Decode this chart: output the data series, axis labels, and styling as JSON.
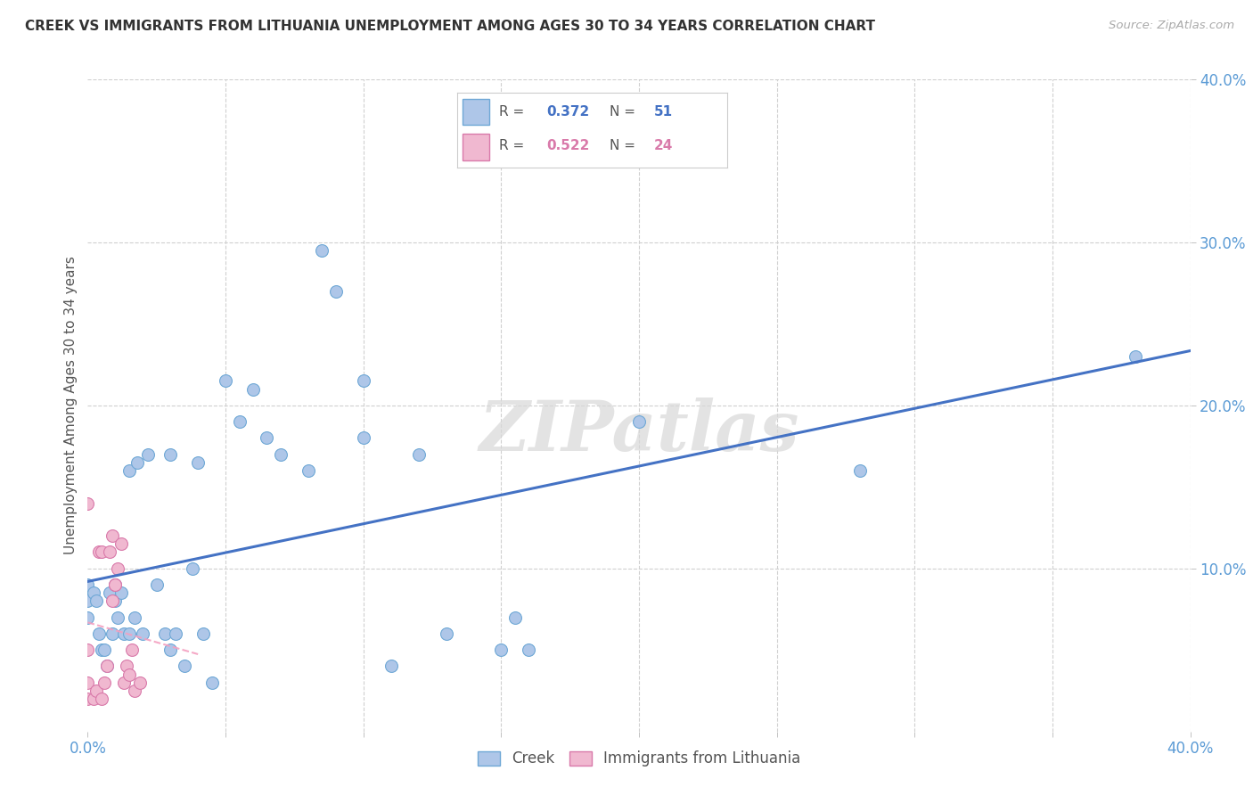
{
  "title": "CREEK VS IMMIGRANTS FROM LITHUANIA UNEMPLOYMENT AMONG AGES 30 TO 34 YEARS CORRELATION CHART",
  "source": "Source: ZipAtlas.com",
  "ylabel": "Unemployment Among Ages 30 to 34 years",
  "xlim": [
    0.0,
    0.4
  ],
  "ylim": [
    0.0,
    0.4
  ],
  "creek_color": "#aec6e8",
  "creek_edge_color": "#6fa8d6",
  "lithuania_color": "#f0b8d0",
  "lithuania_edge_color": "#d97aaa",
  "creek_R": "0.372",
  "creek_N": "51",
  "lithuania_R": "0.522",
  "lithuania_N": "24",
  "creek_line_color": "#4472c4",
  "lithuania_line_color": "#f4a0c0",
  "creek_x": [
    0.0,
    0.0,
    0.0,
    0.002,
    0.003,
    0.004,
    0.005,
    0.006,
    0.007,
    0.008,
    0.009,
    0.01,
    0.01,
    0.011,
    0.012,
    0.013,
    0.015,
    0.015,
    0.017,
    0.018,
    0.02,
    0.022,
    0.025,
    0.028,
    0.03,
    0.03,
    0.032,
    0.035,
    0.038,
    0.04,
    0.042,
    0.045,
    0.05,
    0.055,
    0.06,
    0.065,
    0.07,
    0.08,
    0.085,
    0.09,
    0.1,
    0.1,
    0.11,
    0.12,
    0.13,
    0.15,
    0.155,
    0.16,
    0.2,
    0.28,
    0.38
  ],
  "creek_y": [
    0.09,
    0.08,
    0.07,
    0.085,
    0.08,
    0.06,
    0.05,
    0.05,
    0.04,
    0.085,
    0.06,
    0.09,
    0.08,
    0.07,
    0.085,
    0.06,
    0.16,
    0.06,
    0.07,
    0.165,
    0.06,
    0.17,
    0.09,
    0.06,
    0.17,
    0.05,
    0.06,
    0.04,
    0.1,
    0.165,
    0.06,
    0.03,
    0.215,
    0.19,
    0.21,
    0.18,
    0.17,
    0.16,
    0.295,
    0.27,
    0.215,
    0.18,
    0.04,
    0.17,
    0.06,
    0.05,
    0.07,
    0.05,
    0.19,
    0.16,
    0.23
  ],
  "lithuania_x": [
    0.0,
    0.0,
    0.0,
    0.0,
    0.002,
    0.003,
    0.004,
    0.005,
    0.005,
    0.006,
    0.007,
    0.008,
    0.009,
    0.009,
    0.01,
    0.01,
    0.011,
    0.012,
    0.013,
    0.014,
    0.015,
    0.016,
    0.017,
    0.019
  ],
  "lithuania_y": [
    0.02,
    0.03,
    0.05,
    0.14,
    0.02,
    0.025,
    0.11,
    0.11,
    0.02,
    0.03,
    0.04,
    0.11,
    0.12,
    0.08,
    0.09,
    0.09,
    0.1,
    0.115,
    0.03,
    0.04,
    0.035,
    0.05,
    0.025,
    0.03
  ],
  "watermark": "ZIPatlas",
  "background_color": "#ffffff",
  "grid_color": "#d0d0d0",
  "marker_size": 100
}
